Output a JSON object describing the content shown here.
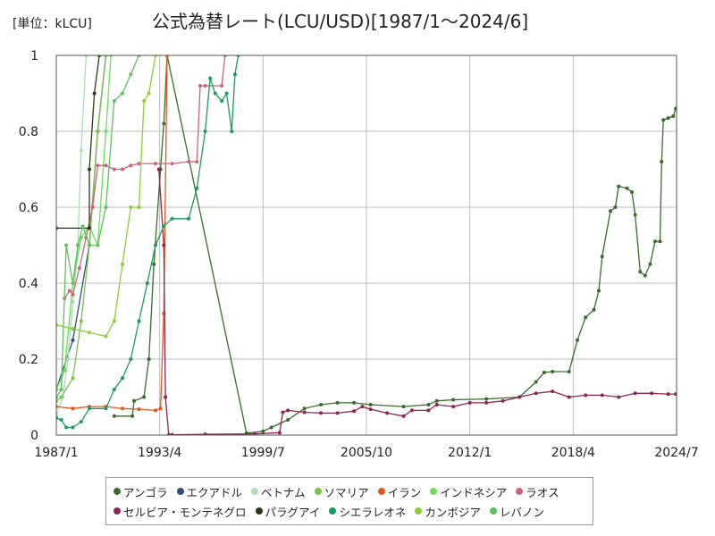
{
  "chart_data": {
    "type": "line",
    "title": "公式為替レート(LCU/USD)[1987/1〜2024/6]",
    "unit_label": "[単位：kLCU]",
    "xlabel": "",
    "ylabel": "",
    "x_ticks": [
      "1987/1",
      "1993/4",
      "1999/7",
      "2005/10",
      "2012/1",
      "2018/4",
      "2024/7"
    ],
    "x_range": [
      1987.0,
      2024.5
    ],
    "y_ticks": [
      "0",
      "0.2",
      "0.4",
      "0.6",
      "0.8",
      "1"
    ],
    "ylim": [
      0,
      1
    ],
    "grid": true,
    "legend_position": "bottom",
    "series": [
      {
        "name": "アンゴラ",
        "color": "#3a6b2a",
        "points": [
          [
            1990.5,
            0.05
          ],
          [
            1991.6,
            0.05
          ],
          [
            1991.7,
            0.09
          ],
          [
            1992.3,
            0.1
          ],
          [
            1992.6,
            0.2
          ],
          [
            1992.9,
            0.45
          ],
          [
            1993.3,
            0.7
          ],
          [
            1993.5,
            0.82
          ],
          [
            1993.7,
            1.0
          ],
          [
            1998.5,
            0.005
          ],
          [
            1999.5,
            0.01
          ],
          [
            2000.0,
            0.02
          ],
          [
            2001.0,
            0.04
          ],
          [
            2002.0,
            0.07
          ],
          [
            2003.0,
            0.08
          ],
          [
            2004.0,
            0.085
          ],
          [
            2005.0,
            0.085
          ],
          [
            2006.0,
            0.08
          ],
          [
            2008.0,
            0.075
          ],
          [
            2009.5,
            0.08
          ],
          [
            2010.0,
            0.09
          ],
          [
            2011.0,
            0.093
          ],
          [
            2013.0,
            0.095
          ],
          [
            2015.0,
            0.1
          ],
          [
            2016.0,
            0.14
          ],
          [
            2016.5,
            0.165
          ],
          [
            2017.0,
            0.167
          ],
          [
            2018.0,
            0.167
          ],
          [
            2018.5,
            0.25
          ],
          [
            2019.0,
            0.31
          ],
          [
            2019.5,
            0.33
          ],
          [
            2019.8,
            0.38
          ],
          [
            2020.0,
            0.47
          ],
          [
            2020.5,
            0.59
          ],
          [
            2020.8,
            0.6
          ],
          [
            2021.0,
            0.655
          ],
          [
            2021.5,
            0.65
          ],
          [
            2021.8,
            0.64
          ],
          [
            2022.0,
            0.58
          ],
          [
            2022.3,
            0.43
          ],
          [
            2022.6,
            0.42
          ],
          [
            2022.9,
            0.45
          ],
          [
            2023.2,
            0.51
          ],
          [
            2023.5,
            0.51
          ],
          [
            2023.6,
            0.72
          ],
          [
            2023.7,
            0.83
          ],
          [
            2024.0,
            0.835
          ],
          [
            2024.3,
            0.84
          ],
          [
            2024.45,
            0.86
          ]
        ]
      },
      {
        "name": "エクアドル",
        "color": "#2f4b7c",
        "points": [
          [
            1987.0,
            0.12
          ],
          [
            1988.0,
            0.25
          ],
          [
            1989.0,
            0.5
          ],
          [
            1989.5,
            0.8
          ],
          [
            1990.0,
            1.0
          ]
        ]
      },
      {
        "name": "ベトナム",
        "color": "#a8dfb4",
        "points": [
          [
            1987.0,
            0.05
          ],
          [
            1987.4,
            0.1
          ],
          [
            1987.7,
            0.2
          ],
          [
            1988.0,
            0.35
          ],
          [
            1988.3,
            0.5
          ],
          [
            1988.5,
            0.75
          ],
          [
            1988.8,
            1.0
          ]
        ]
      },
      {
        "name": "ソマリア",
        "color": "#7bc04e",
        "points": [
          [
            1987.0,
            0.09
          ],
          [
            1987.3,
            0.1
          ],
          [
            1988.0,
            0.15
          ],
          [
            1988.5,
            0.3
          ],
          [
            1989.0,
            0.5
          ],
          [
            1989.5,
            0.8
          ],
          [
            1990.0,
            1.0
          ]
        ]
      },
      {
        "name": "イラン",
        "color": "#e0571d",
        "points": [
          [
            1987.0,
            0.075
          ],
          [
            1988.0,
            0.07
          ],
          [
            1989.0,
            0.075
          ],
          [
            1990.0,
            0.075
          ],
          [
            1991.0,
            0.07
          ],
          [
            1992.0,
            0.068
          ],
          [
            1993.0,
            0.065
          ],
          [
            1993.3,
            0.07
          ],
          [
            1993.5,
            0.32
          ],
          [
            1993.7,
            1.0
          ]
        ]
      },
      {
        "name": "インドネシア",
        "color": "#6cdc5a",
        "points": [
          [
            1987.0,
            0.12
          ],
          [
            1987.5,
            0.17
          ],
          [
            1988.0,
            0.4
          ],
          [
            1988.5,
            0.52
          ],
          [
            1989.0,
            0.55
          ],
          [
            1989.5,
            0.5
          ],
          [
            1990.0,
            0.8
          ],
          [
            1990.3,
            1.0
          ]
        ]
      },
      {
        "name": "ラオス",
        "color": "#c9657a",
        "points": [
          [
            1987.5,
            0.36
          ],
          [
            1987.8,
            0.38
          ],
          [
            1988.0,
            0.37
          ],
          [
            1988.4,
            0.44
          ],
          [
            1988.8,
            0.52
          ],
          [
            1989.2,
            0.6
          ],
          [
            1989.5,
            0.71
          ],
          [
            1990.0,
            0.71
          ],
          [
            1990.5,
            0.7
          ],
          [
            1991.0,
            0.7
          ],
          [
            1991.5,
            0.71
          ],
          [
            1992.0,
            0.715
          ],
          [
            1993.0,
            0.715
          ],
          [
            1994.0,
            0.715
          ],
          [
            1995.0,
            0.72
          ],
          [
            1995.5,
            0.72
          ],
          [
            1995.7,
            0.92
          ],
          [
            1996.0,
            0.92
          ],
          [
            1997.0,
            0.92
          ],
          [
            1997.2,
            1.0
          ]
        ]
      },
      {
        "name": "セルビア・モンテネグロ",
        "color": "#8e2553",
        "points": [
          [
            1993.2,
            0.7
          ],
          [
            1993.5,
            0.5
          ],
          [
            1993.6,
            0.1
          ],
          [
            1993.8,
            0.0
          ],
          [
            1994.0,
            0.001
          ],
          [
            1996.0,
            0.002
          ],
          [
            1999.0,
            0.003
          ],
          [
            2000.5,
            0.006
          ],
          [
            2000.7,
            0.06
          ],
          [
            2001.0,
            0.065
          ],
          [
            2002.0,
            0.06
          ],
          [
            2003.0,
            0.058
          ],
          [
            2004.0,
            0.058
          ],
          [
            2005.0,
            0.063
          ],
          [
            2005.5,
            0.075
          ],
          [
            2006.0,
            0.068
          ],
          [
            2007.0,
            0.058
          ],
          [
            2008.0,
            0.05
          ],
          [
            2008.5,
            0.065
          ],
          [
            2009.5,
            0.065
          ],
          [
            2010.0,
            0.08
          ],
          [
            2011.0,
            0.075
          ],
          [
            2012.0,
            0.085
          ],
          [
            2013.0,
            0.085
          ],
          [
            2014.0,
            0.09
          ],
          [
            2015.0,
            0.1
          ],
          [
            2016.0,
            0.11
          ],
          [
            2017.0,
            0.115
          ],
          [
            2018.0,
            0.1
          ],
          [
            2019.0,
            0.105
          ],
          [
            2020.0,
            0.105
          ],
          [
            2021.0,
            0.1
          ],
          [
            2022.0,
            0.11
          ],
          [
            2023.0,
            0.11
          ],
          [
            2024.0,
            0.108
          ],
          [
            2024.45,
            0.108
          ]
        ]
      },
      {
        "name": "パラグアイ",
        "color": "#2a3a14",
        "points": [
          [
            1987.0,
            0.545
          ],
          [
            1989.0,
            0.545
          ],
          [
            1989.0,
            0.7
          ],
          [
            1989.3,
            0.9
          ],
          [
            1989.6,
            1.0
          ]
        ]
      },
      {
        "name": "シエラレオネ",
        "color": "#1f9a5e",
        "points": [
          [
            1987.0,
            0.045
          ],
          [
            1987.3,
            0.04
          ],
          [
            1987.6,
            0.02
          ],
          [
            1988.0,
            0.02
          ],
          [
            1988.5,
            0.035
          ],
          [
            1989.0,
            0.07
          ],
          [
            1990.0,
            0.07
          ],
          [
            1990.5,
            0.12
          ],
          [
            1991.0,
            0.15
          ],
          [
            1991.5,
            0.2
          ],
          [
            1992.0,
            0.3
          ],
          [
            1992.5,
            0.4
          ],
          [
            1993.0,
            0.5
          ],
          [
            1993.5,
            0.55
          ],
          [
            1994.0,
            0.57
          ],
          [
            1995.0,
            0.57
          ],
          [
            1995.5,
            0.65
          ],
          [
            1996.0,
            0.8
          ],
          [
            1996.3,
            0.94
          ],
          [
            1996.6,
            0.9
          ],
          [
            1997.0,
            0.88
          ],
          [
            1997.3,
            0.9
          ],
          [
            1997.6,
            0.8
          ],
          [
            1997.8,
            0.95
          ],
          [
            1998.0,
            1.0
          ]
        ]
      },
      {
        "name": "カンボジア",
        "color": "#8fcc3a",
        "points": [
          [
            1987.0,
            0.29
          ],
          [
            1988.0,
            0.28
          ],
          [
            1989.0,
            0.27
          ],
          [
            1990.0,
            0.26
          ],
          [
            1990.5,
            0.3
          ],
          [
            1991.0,
            0.45
          ],
          [
            1991.5,
            0.6
          ],
          [
            1992.0,
            0.6
          ],
          [
            1992.3,
            0.88
          ],
          [
            1992.6,
            0.9
          ],
          [
            1993.0,
            1.0
          ]
        ]
      },
      {
        "name": "レバノン",
        "color": "#5cc05c",
        "points": [
          [
            1987.0,
            0.1
          ],
          [
            1987.3,
            0.12
          ],
          [
            1987.6,
            0.5
          ],
          [
            1988.0,
            0.4
          ],
          [
            1988.3,
            0.5
          ],
          [
            1988.6,
            0.55
          ],
          [
            1989.0,
            0.5
          ],
          [
            1989.5,
            0.5
          ],
          [
            1990.0,
            0.6
          ],
          [
            1990.5,
            0.88
          ],
          [
            1991.0,
            0.9
          ],
          [
            1991.5,
            0.95
          ],
          [
            1992.0,
            1.0
          ]
        ]
      }
    ]
  }
}
